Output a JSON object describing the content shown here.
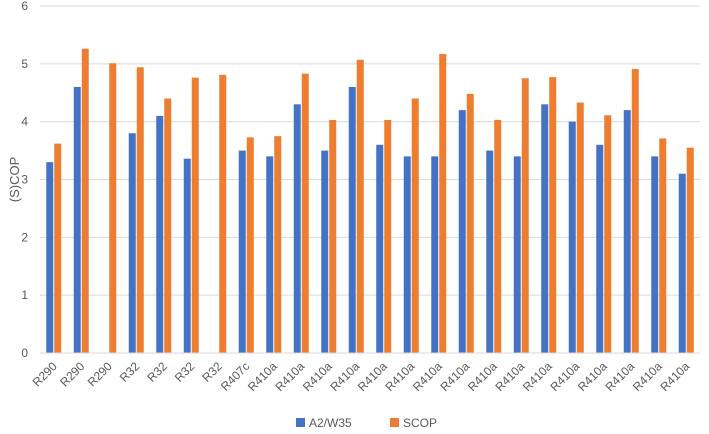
{
  "chart_data": {
    "type": "bar",
    "ylabel": "(S)COP",
    "xlabel": "",
    "ylim": [
      0,
      6
    ],
    "yticks": [
      0,
      1,
      2,
      3,
      4,
      5,
      6
    ],
    "grid": true,
    "legend_position": "bottom",
    "categories": [
      "R290",
      "R290",
      "R290",
      "R32",
      "R32",
      "R32",
      "R32",
      "R407c",
      "R410a",
      "R410a",
      "R410a",
      "R410a",
      "R410a",
      "R410a",
      "R410a",
      "R410a",
      "R410a",
      "R410a",
      "R410a",
      "R410a",
      "R410a",
      "R410a",
      "R410a",
      "R410a"
    ],
    "series": [
      {
        "name": "A2/W35",
        "color": "#4472C4",
        "values": [
          3.3,
          4.6,
          null,
          3.8,
          4.1,
          3.36,
          null,
          3.5,
          3.4,
          4.3,
          3.5,
          4.6,
          3.6,
          3.4,
          3.4,
          4.2,
          3.5,
          3.4,
          4.3,
          4.0,
          3.6,
          4.2,
          3.4,
          3.1
        ]
      },
      {
        "name": "SCOP",
        "color": "#ED7D31",
        "values": [
          3.62,
          5.26,
          5.01,
          4.94,
          4.4,
          4.76,
          4.81,
          3.73,
          3.75,
          4.83,
          4.03,
          5.07,
          4.03,
          4.4,
          5.17,
          4.48,
          4.03,
          4.75,
          4.77,
          4.33,
          4.11,
          4.91,
          3.71,
          3.55
        ]
      }
    ]
  }
}
